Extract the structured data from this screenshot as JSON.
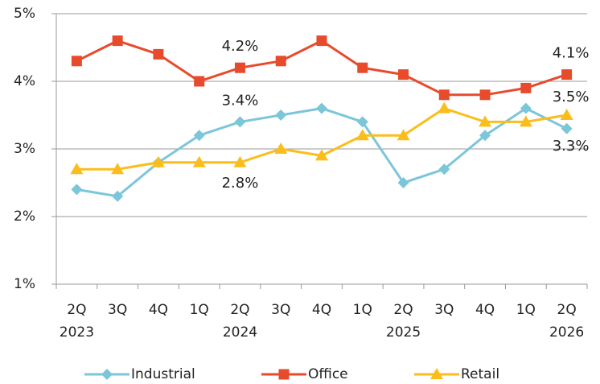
{
  "chart_data": {
    "type": "line",
    "categories": [
      "2Q",
      "3Q",
      "4Q",
      "1Q",
      "2Q",
      "3Q",
      "4Q",
      "1Q",
      "2Q",
      "3Q",
      "4Q",
      "1Q",
      "2Q"
    ],
    "year_labels": [
      "2023",
      null,
      null,
      null,
      "2024",
      null,
      null,
      null,
      "2025",
      null,
      null,
      null,
      "2026"
    ],
    "series": [
      {
        "name": "Industrial",
        "color": "#7cc6da",
        "marker": "diamond",
        "values": [
          2.4,
          2.3,
          2.8,
          3.2,
          3.4,
          3.5,
          3.6,
          3.4,
          2.5,
          2.7,
          3.2,
          3.6,
          3.3
        ],
        "value_labels": [
          null,
          null,
          null,
          null,
          "3.4%",
          null,
          null,
          null,
          null,
          null,
          null,
          null,
          "3.3%"
        ]
      },
      {
        "name": "Office",
        "color": "#e84a2c",
        "marker": "square",
        "values": [
          4.3,
          4.6,
          4.4,
          4.0,
          4.2,
          4.3,
          4.6,
          4.2,
          4.1,
          3.8,
          3.8,
          3.9,
          4.1
        ],
        "value_labels": [
          null,
          null,
          null,
          null,
          "4.2%",
          null,
          null,
          null,
          null,
          null,
          null,
          null,
          "4.1%"
        ]
      },
      {
        "name": "Retail",
        "color": "#fbbd1c",
        "marker": "triangle",
        "values": [
          2.7,
          2.7,
          2.8,
          2.8,
          2.8,
          3.0,
          2.9,
          3.2,
          3.2,
          3.6,
          3.4,
          3.4,
          3.5
        ],
        "value_labels": [
          null,
          null,
          null,
          null,
          "2.8%",
          null,
          null,
          null,
          null,
          null,
          null,
          null,
          "3.5%"
        ]
      }
    ],
    "ylim": [
      1,
      5
    ],
    "yticks": [
      {
        "value": 1,
        "label": "1%"
      },
      {
        "value": 2,
        "label": "2%"
      },
      {
        "value": 3,
        "label": "3%"
      },
      {
        "value": 4,
        "label": "4%"
      },
      {
        "value": 5,
        "label": "5%"
      }
    ],
    "grid": true,
    "legend": "bottom"
  }
}
